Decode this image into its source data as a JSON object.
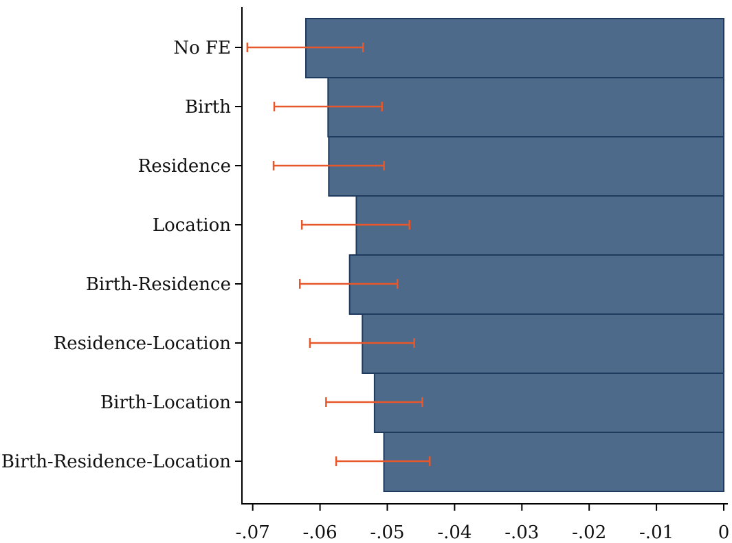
{
  "chart_data": {
    "type": "bar",
    "orientation": "horizontal",
    "title": "",
    "xlabel": "",
    "ylabel": "",
    "categories": [
      "No FE",
      "Birth",
      "Residence",
      "Location",
      "Birth-Residence",
      "Residence-Location",
      "Birth-Location",
      "Birth-Residence-Location"
    ],
    "values": [
      -0.0621,
      -0.0588,
      -0.0587,
      -0.0546,
      -0.0556,
      -0.0537,
      -0.0519,
      -0.0505
    ],
    "ci_low": [
      -0.0708,
      -0.0668,
      -0.0669,
      -0.0627,
      -0.063,
      -0.0615,
      -0.0591,
      -0.0576
    ],
    "ci_high": [
      -0.0536,
      -0.0508,
      -0.0505,
      -0.0467,
      -0.0485,
      -0.046,
      -0.0448,
      -0.0437
    ],
    "xlim": [
      -0.0715,
      0.0
    ],
    "xticks": [
      -0.07,
      -0.06,
      -0.05,
      -0.04,
      -0.03,
      -0.02,
      -0.01,
      0
    ],
    "xtick_labels": [
      "-.07",
      "-.06",
      "-.05",
      "-.04",
      "-.03",
      "-.02",
      "-.01",
      "0"
    ],
    "grid": false,
    "legend": "none",
    "colors": {
      "bar_fill": "#4e6a8a",
      "bar_edge": "#1f3a5f",
      "error_bar": "#e8572a",
      "axis": "#000000"
    }
  }
}
